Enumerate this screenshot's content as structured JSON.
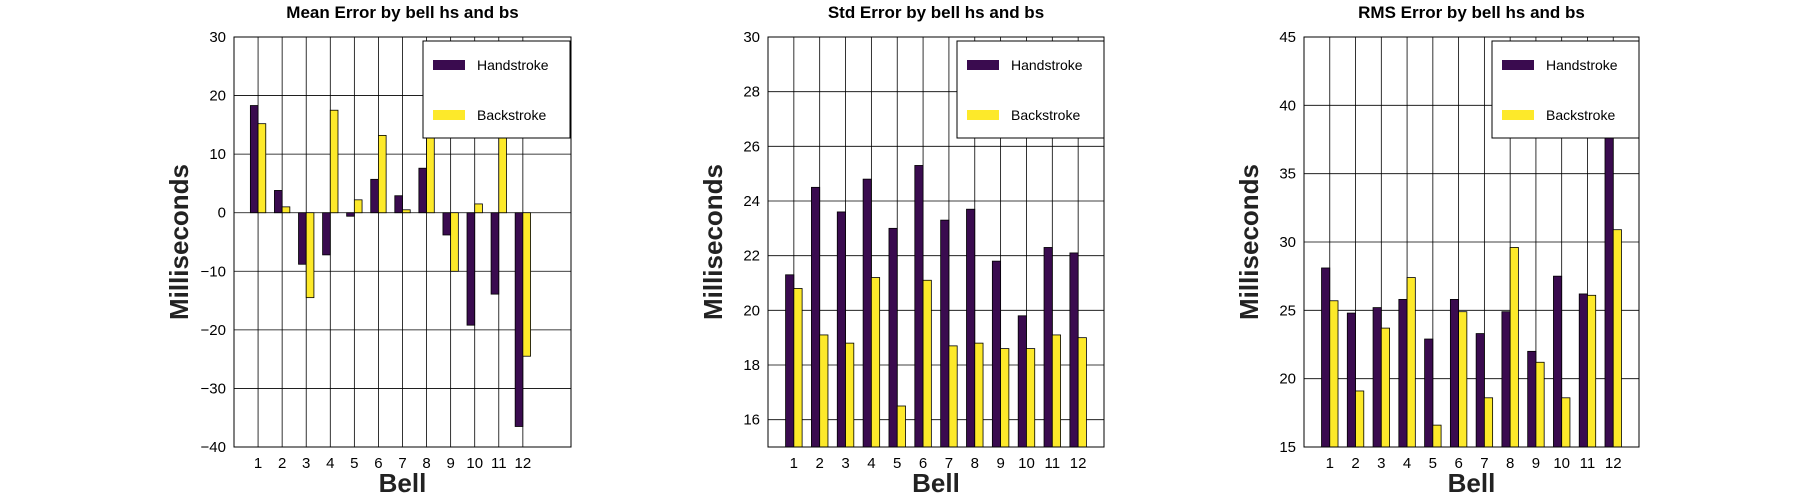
{
  "colors": {
    "handstroke": "#3a0b4f",
    "backstroke": "#fde92a",
    "grid": "#000000"
  },
  "chart_data": [
    {
      "type": "bar",
      "title": "Mean Error by bell hs and bs",
      "xlabel": "Bell",
      "ylabel": "Milliseconds",
      "categories": [
        "1",
        "2",
        "3",
        "4",
        "5",
        "6",
        "7",
        "8",
        "9",
        "10",
        "11",
        "12"
      ],
      "xlim": [
        0,
        14
      ],
      "ylim": [
        -40,
        30
      ],
      "yticks": [
        30,
        20,
        10,
        0,
        -10,
        -20,
        -30,
        -40
      ],
      "ytick_labels": [
        "30",
        "20",
        "10",
        "0",
        "−10",
        "−20",
        "−30",
        "−40"
      ],
      "grid": true,
      "legend": "top-right",
      "series": [
        {
          "name": "Handstroke",
          "values": [
            18.3,
            3.8,
            -8.8,
            -7.2,
            -0.6,
            5.7,
            2.9,
            7.6,
            -3.8,
            -19.2,
            -13.9,
            -36.5
          ]
        },
        {
          "name": "Backstroke",
          "values": [
            15.2,
            1.0,
            -14.5,
            17.5,
            2.2,
            13.2,
            0.5,
            22.8,
            -10.0,
            1.5,
            17.8,
            -24.5
          ]
        }
      ]
    },
    {
      "type": "bar",
      "title": "Std Error by bell hs and bs",
      "xlabel": "Bell",
      "ylabel": "Milliseconds",
      "categories": [
        "1",
        "2",
        "3",
        "4",
        "5",
        "6",
        "7",
        "8",
        "9",
        "10",
        "11",
        "12"
      ],
      "xlim": [
        0,
        13
      ],
      "ylim": [
        15,
        30
      ],
      "yticks": [
        30,
        28,
        26,
        24,
        22,
        20,
        18,
        16
      ],
      "ytick_labels": [
        "30",
        "28",
        "26",
        "24",
        "22",
        "20",
        "18",
        "16"
      ],
      "grid": true,
      "legend": "top-right",
      "series": [
        {
          "name": "Handstroke",
          "values": [
            21.3,
            24.5,
            23.6,
            24.8,
            23.0,
            25.3,
            23.3,
            23.7,
            21.8,
            19.8,
            22.3,
            22.1
          ]
        },
        {
          "name": "Backstroke",
          "values": [
            20.8,
            19.1,
            18.8,
            21.2,
            16.5,
            21.1,
            18.7,
            18.8,
            18.6,
            18.6,
            19.1,
            19.0
          ]
        }
      ]
    },
    {
      "type": "bar",
      "title": "RMS Error by bell hs and bs",
      "xlabel": "Bell",
      "ylabel": "Milliseconds",
      "categories": [
        "1",
        "2",
        "3",
        "4",
        "5",
        "6",
        "7",
        "8",
        "9",
        "10",
        "11",
        "12"
      ],
      "xlim": [
        0,
        13
      ],
      "ylim": [
        15,
        45
      ],
      "yticks": [
        45,
        40,
        35,
        30,
        25,
        20,
        15
      ],
      "ytick_labels": [
        "45",
        "40",
        "35",
        "30",
        "25",
        "20",
        "15"
      ],
      "grid": true,
      "legend": "top-right",
      "series": [
        {
          "name": "Handstroke",
          "values": [
            28.1,
            24.8,
            25.2,
            25.8,
            22.9,
            25.8,
            23.3,
            24.9,
            22.0,
            27.5,
            26.2,
            42.6
          ]
        },
        {
          "name": "Backstroke",
          "values": [
            25.7,
            19.1,
            23.7,
            27.4,
            16.6,
            24.9,
            18.6,
            29.6,
            21.2,
            18.6,
            26.1,
            30.9
          ]
        }
      ]
    }
  ]
}
